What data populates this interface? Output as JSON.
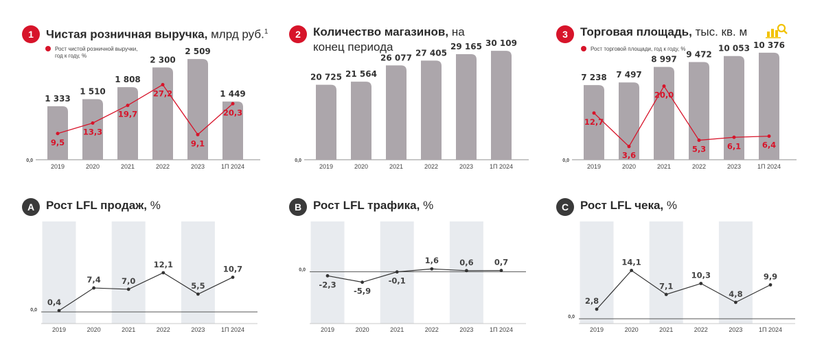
{
  "colors": {
    "accent": "#d7142a",
    "bar": "#aca6ab",
    "band": "#e8ebef",
    "line": "#333333",
    "badge_dark": "#3a3a3a"
  },
  "top_panels": [
    {
      "badge": "1",
      "title_bold": "Чистая розничная выручка,",
      "title_rest": "млрд руб.",
      "sup": "1",
      "title_line2": "",
      "legend": [
        "Рост чистой розничной выручки,",
        "год к году, %"
      ]
    },
    {
      "badge": "2",
      "title_bold": "Количество магазинов,",
      "title_rest": "на",
      "sup": "",
      "title_line2": "конец периода",
      "legend": []
    },
    {
      "badge": "3",
      "title_bold": "Торговая площадь,",
      "title_rest": "тыс. кв. м",
      "sup": "",
      "title_line2": "",
      "legend": [
        "Рост торговой площади, год к году, %"
      ],
      "icon": "stores-area-icon"
    }
  ],
  "bottom_panels": [
    {
      "badge": "A",
      "title_bold": "Рост LFL продаж,",
      "title_rest": "%"
    },
    {
      "badge": "B",
      "title_bold": "Рост LFL трафика,",
      "title_rest": "%"
    },
    {
      "badge": "C",
      "title_bold": "Рост LFL чека,",
      "title_rest": "%"
    }
  ],
  "chart_data": [
    {
      "type": "bar",
      "title": "Чистая розничная выручка, млрд руб.",
      "categories": [
        "2019",
        "2020",
        "2021",
        "2022",
        "2023",
        "1П 2024"
      ],
      "values": [
        1333,
        1510,
        1808,
        2300,
        2509,
        1449
      ],
      "value_labels": [
        "1 333",
        "1 510",
        "1 808",
        "2 300",
        "2 509",
        "1 449"
      ],
      "line": {
        "name": "Рост чистой розничной выручки, год к году, %",
        "values": [
          9.5,
          13.3,
          19.7,
          27.2,
          9.1,
          20.3
        ],
        "labels": [
          "9,5",
          "13,3",
          "19,7",
          "27,2",
          "9,1",
          "20,3"
        ],
        "ylim": [
          0,
          40
        ]
      },
      "zero_label": "0,0",
      "ylim": [
        0,
        2750
      ]
    },
    {
      "type": "bar",
      "title": "Количество магазинов, на конец периода",
      "categories": [
        "2019",
        "2020",
        "2021",
        "2022",
        "2023",
        "1П 2024"
      ],
      "values": [
        20725,
        21564,
        26077,
        27405,
        29165,
        30109
      ],
      "value_labels": [
        "20 725",
        "21 564",
        "26 077",
        "27 405",
        "29 165",
        "30 109"
      ],
      "zero_label": "0,0",
      "ylim": [
        0,
        30500
      ]
    },
    {
      "type": "bar",
      "title": "Торговая площадь, тыс. кв. м",
      "categories": [
        "2019",
        "2020",
        "2021",
        "2022",
        "2023",
        "1П 2024"
      ],
      "values": [
        7238,
        7497,
        8997,
        9472,
        10053,
        10376
      ],
      "value_labels": [
        "7 238",
        "7 497",
        "8 997",
        "9 472",
        "10 053",
        "10 376"
      ],
      "line": {
        "name": "Рост торговой площади, год к году, %",
        "values": [
          12.7,
          3.6,
          20.0,
          5.3,
          6.1,
          6.4
        ],
        "labels": [
          "12,7",
          "3,6",
          "20,0",
          "5,3",
          "6,1",
          "6,4"
        ],
        "ylim": [
          0,
          30
        ]
      },
      "zero_label": "0,0",
      "ylim": [
        0,
        10700
      ]
    },
    {
      "type": "line",
      "title": "Рост LFL продаж, %",
      "categories": [
        "2019",
        "2020",
        "2021",
        "2022",
        "2023",
        "1П 2024"
      ],
      "values": [
        0.4,
        7.4,
        7.0,
        12.1,
        5.5,
        10.7
      ],
      "labels": [
        "0,4",
        "7,4",
        "7,0",
        "12,1",
        "5,5",
        "10,7"
      ],
      "zero_label": "0,0",
      "ylim": [
        0,
        18
      ]
    },
    {
      "type": "line",
      "title": "Рост LFL трафика, %",
      "categories": [
        "2019",
        "2020",
        "2021",
        "2022",
        "2023",
        "1П 2024"
      ],
      "values": [
        -2.3,
        -5.9,
        -0.1,
        1.6,
        0.6,
        0.7
      ],
      "labels": [
        "-2,3",
        "-5,9",
        "-0,1",
        "1,6",
        "0,6",
        "0,7"
      ],
      "zero_label": "0,0",
      "ylim": [
        -13,
        16
      ]
    },
    {
      "type": "line",
      "title": "Рост LFL чека, %",
      "categories": [
        "2019",
        "2020",
        "2021",
        "2022",
        "2023",
        "1П 2024"
      ],
      "values": [
        2.8,
        14.1,
        7.1,
        10.3,
        4.8,
        9.9
      ],
      "labels": [
        "2,8",
        "14,1",
        "7,1",
        "10,3",
        "4,8",
        "9,9"
      ],
      "zero_label": "0,0",
      "ylim": [
        0,
        23
      ]
    }
  ]
}
